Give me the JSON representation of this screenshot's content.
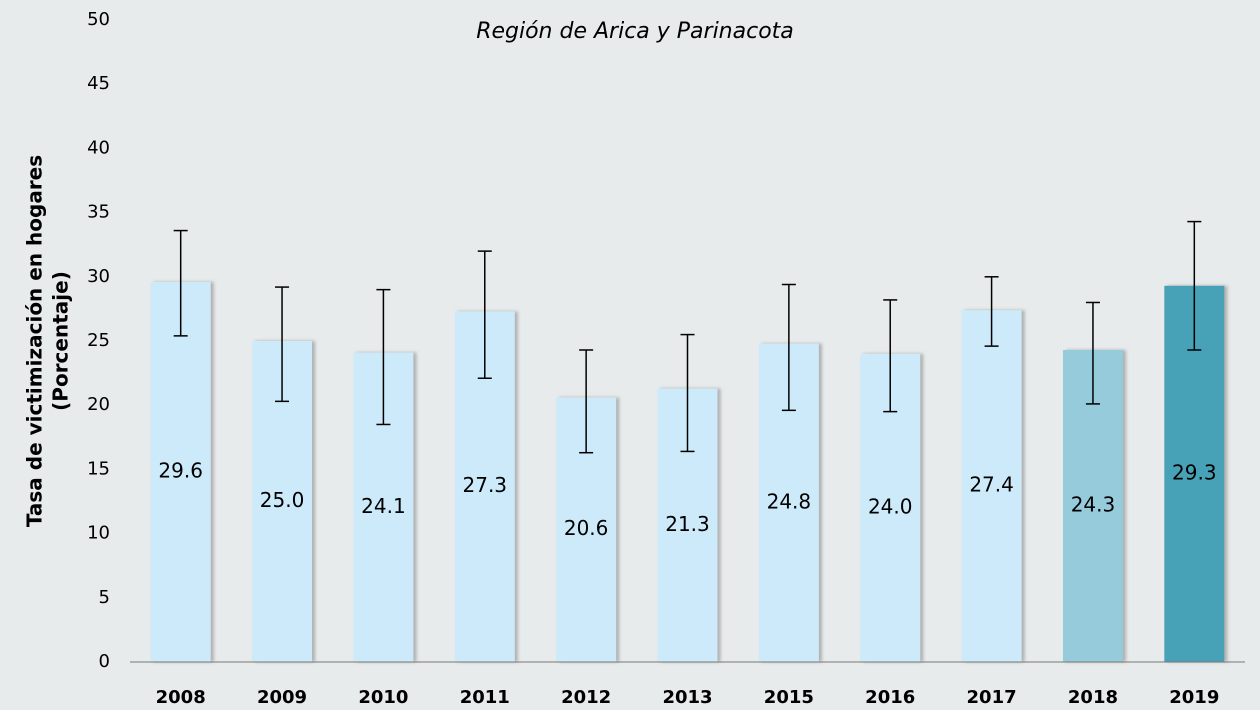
{
  "chart_data": {
    "type": "bar",
    "title": "Región de Arica y Parinacota",
    "y_label": [
      "Tasa de victimización en hogares",
      "(Porcentaje)"
    ],
    "categories": [
      "2008",
      "2009",
      "2010",
      "2011",
      "2012",
      "2013",
      "2015",
      "2016",
      "2017",
      "2018",
      "2019"
    ],
    "values": [
      29.6,
      25.0,
      24.1,
      27.3,
      20.6,
      21.3,
      24.8,
      24.0,
      27.4,
      24.3,
      29.3
    ],
    "value_labels": [
      "29.6",
      "25.0",
      "24.1",
      "27.3",
      "20.6",
      "21.3",
      "24.8",
      "24.0",
      "27.4",
      "24.3",
      "29.3"
    ],
    "errors_plus": [
      4.0,
      4.2,
      4.9,
      4.7,
      3.7,
      4.2,
      4.6,
      4.2,
      2.6,
      3.7,
      5.0
    ],
    "errors_minus": [
      4.2,
      4.7,
      5.6,
      5.2,
      4.3,
      4.9,
      5.2,
      4.5,
      2.8,
      4.2,
      5.0
    ],
    "colors": [
      "#cdeafa",
      "#cdeafa",
      "#cdeafa",
      "#cdeafa",
      "#cdeafa",
      "#cdeafa",
      "#cdeafa",
      "#cdeafa",
      "#cdeafa",
      "#96cbdc",
      "#47a2b8"
    ],
    "ylim": [
      0,
      50
    ],
    "yticks": [
      0,
      5,
      10,
      15,
      20,
      25,
      30,
      35,
      40,
      45,
      50
    ],
    "grid": false
  }
}
